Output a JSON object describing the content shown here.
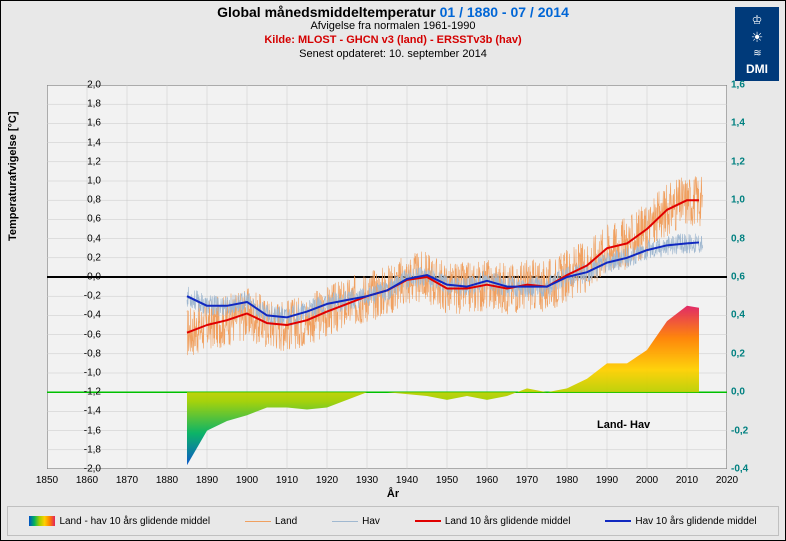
{
  "title": {
    "main": "Global månedsmiddeltemperatur",
    "range": "01 / 1880 - 07 / 2014",
    "sub1": "Afvigelse fra normalen 1961-1990",
    "src": "Kilde: MLOST - GHCN v3 (land) - ERSSTv3b (hav)",
    "upd": "Senest opdateret:  10. september 2014"
  },
  "logo": {
    "text": "DMI"
  },
  "axes": {
    "x": {
      "label": "År",
      "min": 1850,
      "max": 2020,
      "step": 10,
      "ticks": [
        1850,
        1860,
        1870,
        1880,
        1890,
        1900,
        1910,
        1920,
        1930,
        1940,
        1950,
        1960,
        1970,
        1980,
        1990,
        2000,
        2010,
        2020
      ]
    },
    "yl": {
      "label": "Temperaturafvigelse [°C]",
      "min": -2.0,
      "max": 2.0,
      "step": 0.2,
      "ticks": [
        -2.0,
        -1.8,
        -1.6,
        -1.4,
        -1.2,
        -1.0,
        -0.8,
        -0.6,
        -0.4,
        -0.2,
        0,
        0.2,
        0.4,
        0.6,
        0.8,
        1.0,
        1.2,
        1.4,
        1.6,
        1.8,
        2.0
      ]
    },
    "yr": {
      "min": -0.4,
      "max": 1.6,
      "step": 0.2,
      "ticks": [
        -0.4,
        -0.2,
        0.0,
        0.2,
        0.4,
        0.6,
        0.8,
        1.0,
        1.2,
        1.4,
        1.6
      ],
      "color": "#008080"
    }
  },
  "style": {
    "grid_color": "#c8c8c8",
    "zero_l_color": "#000000",
    "zero_l_width": 2,
    "zero_r_color": "#00c000",
    "zero_r_width": 1.5,
    "land_thin": {
      "color": "#f0a060",
      "width": 0.6
    },
    "hav_thin": {
      "color": "#a0b8d0",
      "width": 0.6
    },
    "land_ma": {
      "color": "#e00000",
      "width": 2
    },
    "hav_ma": {
      "color": "#1028c0",
      "width": 2
    },
    "diff_gradient": [
      "#0050c8",
      "#00b060",
      "#a0d000",
      "#ffd000",
      "#ff8000",
      "#e02060"
    ],
    "background": "#e8e8e8",
    "plot_bg": "#f2f2f2",
    "font": "Arial"
  },
  "inset_label": "Land- Hav",
  "legend": [
    {
      "type": "grad",
      "label": "Land - hav 10 års glidende middel"
    },
    {
      "type": "line",
      "color": "#f0a060",
      "width": 1,
      "label": "Land"
    },
    {
      "type": "line",
      "color": "#a0b8d0",
      "width": 1,
      "label": "Hav"
    },
    {
      "type": "line",
      "color": "#e00000",
      "width": 2,
      "label": "Land 10 års glidende middel"
    },
    {
      "type": "line",
      "color": "#1028c0",
      "width": 2,
      "label": "Hav 10 års glidende middel"
    }
  ],
  "series": {
    "land_ma": [
      [
        1885,
        -0.58
      ],
      [
        1890,
        -0.5
      ],
      [
        1895,
        -0.45
      ],
      [
        1900,
        -0.38
      ],
      [
        1905,
        -0.48
      ],
      [
        1910,
        -0.5
      ],
      [
        1915,
        -0.45
      ],
      [
        1920,
        -0.36
      ],
      [
        1925,
        -0.28
      ],
      [
        1930,
        -0.2
      ],
      [
        1935,
        -0.14
      ],
      [
        1940,
        -0.03
      ],
      [
        1945,
        0.0
      ],
      [
        1950,
        -0.12
      ],
      [
        1955,
        -0.12
      ],
      [
        1960,
        -0.08
      ],
      [
        1965,
        -0.12
      ],
      [
        1970,
        -0.08
      ],
      [
        1975,
        -0.1
      ],
      [
        1980,
        0.02
      ],
      [
        1985,
        0.12
      ],
      [
        1990,
        0.3
      ],
      [
        1995,
        0.35
      ],
      [
        2000,
        0.5
      ],
      [
        2005,
        0.7
      ],
      [
        2010,
        0.8
      ],
      [
        2013,
        0.8
      ]
    ],
    "hav_ma": [
      [
        1885,
        -0.2
      ],
      [
        1890,
        -0.3
      ],
      [
        1895,
        -0.3
      ],
      [
        1900,
        -0.26
      ],
      [
        1905,
        -0.4
      ],
      [
        1910,
        -0.42
      ],
      [
        1915,
        -0.36
      ],
      [
        1920,
        -0.28
      ],
      [
        1925,
        -0.24
      ],
      [
        1930,
        -0.2
      ],
      [
        1935,
        -0.14
      ],
      [
        1940,
        -0.02
      ],
      [
        1945,
        0.02
      ],
      [
        1950,
        -0.08
      ],
      [
        1955,
        -0.1
      ],
      [
        1960,
        -0.04
      ],
      [
        1965,
        -0.1
      ],
      [
        1970,
        -0.1
      ],
      [
        1975,
        -0.1
      ],
      [
        1980,
        0.0
      ],
      [
        1985,
        0.05
      ],
      [
        1990,
        0.15
      ],
      [
        1995,
        0.2
      ],
      [
        2000,
        0.28
      ],
      [
        2005,
        0.33
      ],
      [
        2010,
        0.35
      ],
      [
        2013,
        0.36
      ]
    ],
    "diff": [
      [
        1885,
        -0.38
      ],
      [
        1890,
        -0.2
      ],
      [
        1895,
        -0.15
      ],
      [
        1900,
        -0.12
      ],
      [
        1905,
        -0.08
      ],
      [
        1910,
        -0.08
      ],
      [
        1915,
        -0.09
      ],
      [
        1920,
        -0.08
      ],
      [
        1925,
        -0.04
      ],
      [
        1930,
        0.0
      ],
      [
        1935,
        0.0
      ],
      [
        1940,
        -0.01
      ],
      [
        1945,
        -0.02
      ],
      [
        1950,
        -0.04
      ],
      [
        1955,
        -0.02
      ],
      [
        1960,
        -0.04
      ],
      [
        1965,
        -0.02
      ],
      [
        1970,
        0.02
      ],
      [
        1975,
        0.0
      ],
      [
        1980,
        0.02
      ],
      [
        1985,
        0.07
      ],
      [
        1990,
        0.15
      ],
      [
        1995,
        0.15
      ],
      [
        2000,
        0.22
      ],
      [
        2005,
        0.37
      ],
      [
        2010,
        0.45
      ],
      [
        2013,
        0.44
      ]
    ]
  }
}
